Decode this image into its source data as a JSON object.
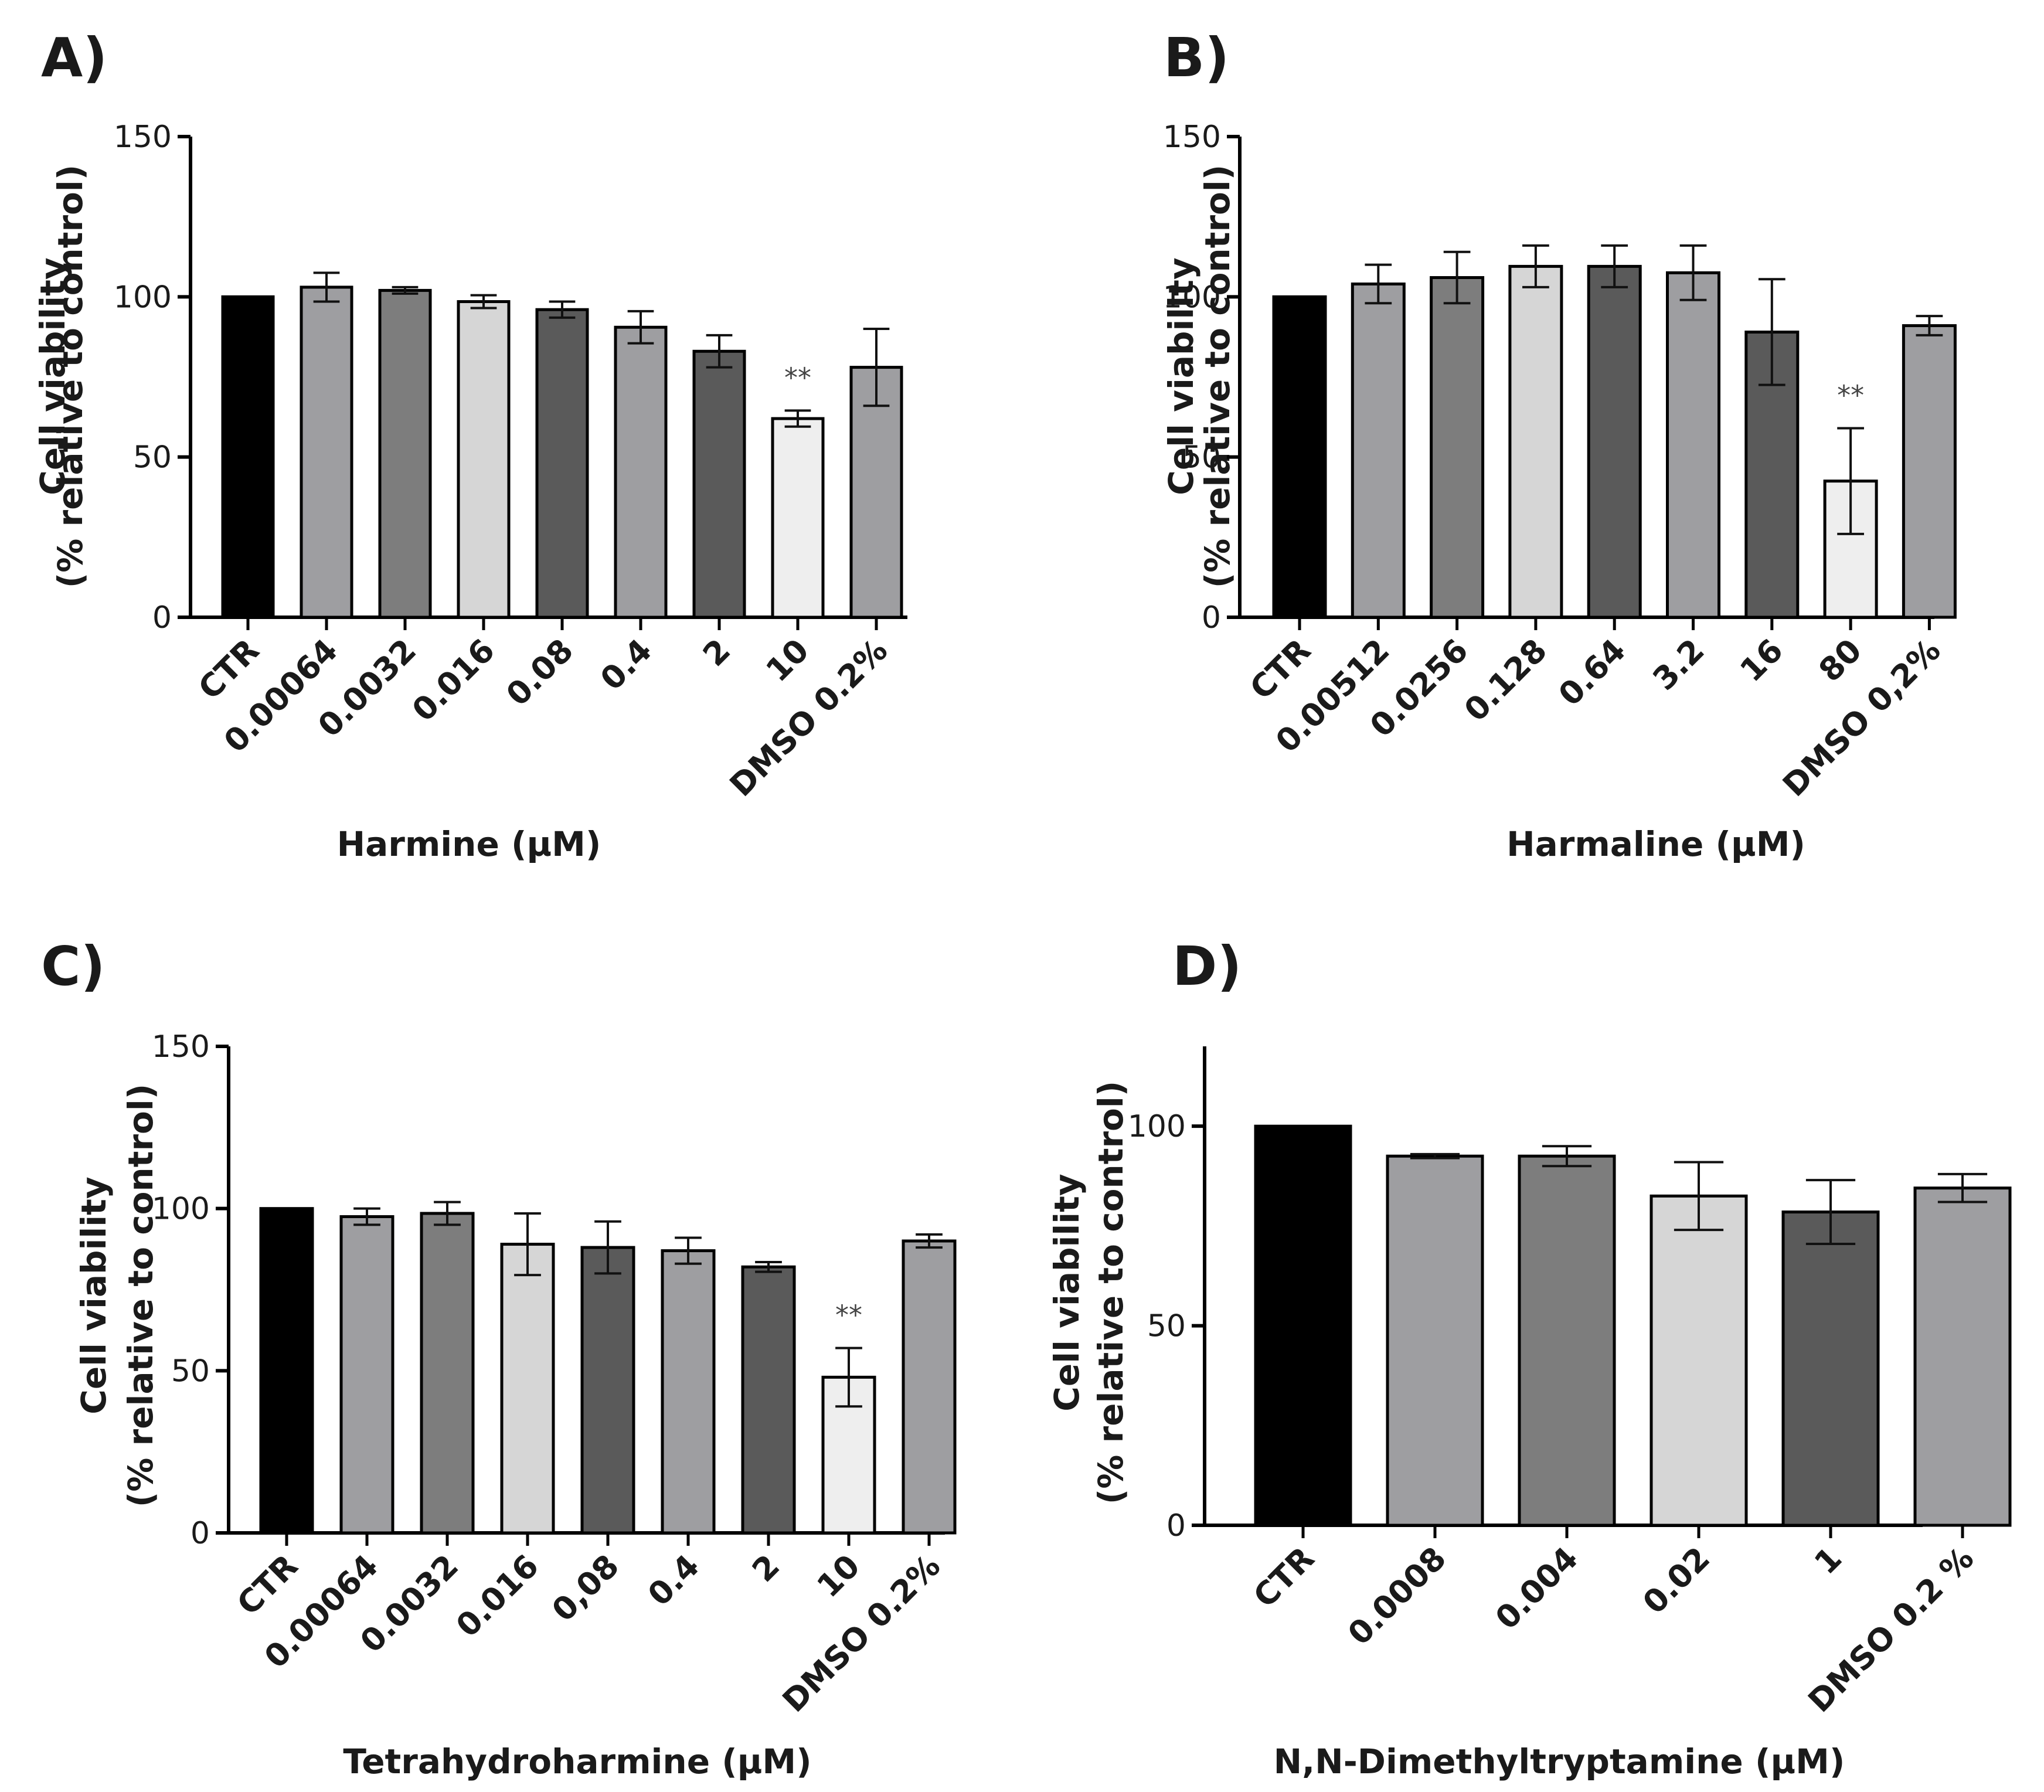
{
  "chart_data": [
    {
      "type": "bar",
      "panel": "A)",
      "categories": [
        "CTR",
        "0.00064",
        "0.0032",
        "0.016",
        "0.08",
        "0.4",
        "2",
        "10",
        "DMSO 0.2%"
      ],
      "values": [
        100,
        103,
        102,
        98.5,
        96,
        90.5,
        83,
        62,
        78
      ],
      "errors": [
        0,
        4.5,
        1,
        2,
        2.5,
        5,
        5,
        2.5,
        12
      ],
      "colors": [
        "#000000",
        "#9e9ea1",
        "#7d7d7d",
        "#d6d6d6",
        "#5a5a5a",
        "#9e9ea1",
        "#5a5a5a",
        "#eeeeee",
        "#9e9ea1"
      ],
      "significance": [
        {
          "index": 7,
          "label": "**"
        }
      ],
      "xlabel": "Harmine (µM)",
      "ylabel_line1": "Cell viability",
      "ylabel_line2": "(% relative to control)",
      "ylim": [
        0,
        150
      ],
      "yticks": [
        "0",
        "50",
        "100",
        "150"
      ],
      "grid": false
    },
    {
      "type": "bar",
      "panel": "B)",
      "categories": [
        "CTR",
        "0.00512",
        "0.0256",
        "0.128",
        "0.64",
        "3.2",
        "16",
        "80",
        "DMSO 0,2%"
      ],
      "values": [
        100,
        104,
        106,
        109.5,
        109.5,
        107.5,
        89,
        42.5,
        91
      ],
      "errors": [
        0,
        6,
        8,
        6.5,
        6.5,
        8.5,
        16.5,
        16.5,
        3
      ],
      "colors": [
        "#000000",
        "#9e9ea1",
        "#7d7d7d",
        "#d6d6d6",
        "#5a5a5a",
        "#9e9ea1",
        "#5a5a5a",
        "#eeeeee",
        "#9e9ea1"
      ],
      "significance": [
        {
          "index": 7,
          "label": "**"
        }
      ],
      "xlabel": "Harmaline (µM)",
      "ylabel_line1": "Cell viability",
      "ylabel_line2": "(% relative to control)",
      "ylim": [
        0,
        150
      ],
      "yticks": [
        "0",
        "50",
        "100",
        "150"
      ],
      "grid": false
    },
    {
      "type": "bar",
      "panel": "C)",
      "categories": [
        "CTR",
        "0.00064",
        "0.0032",
        "0.016",
        "0,08",
        "0.4",
        "2",
        "10",
        "DMSO 0.2%"
      ],
      "values": [
        100,
        97.5,
        98.5,
        89,
        88,
        87,
        82,
        48,
        90
      ],
      "errors": [
        0,
        2.5,
        3.5,
        9.5,
        8,
        4,
        1.5,
        9,
        2
      ],
      "colors": [
        "#000000",
        "#9e9ea1",
        "#7d7d7d",
        "#d6d6d6",
        "#5a5a5a",
        "#9e9ea1",
        "#5a5a5a",
        "#eeeeee",
        "#9e9ea1"
      ],
      "significance": [
        {
          "index": 7,
          "label": "**"
        }
      ],
      "xlabel": "Tetrahydroharmine (µM)",
      "ylabel_line1": "Cell viability",
      "ylabel_line2": "(% relative to control)",
      "ylim": [
        0,
        150
      ],
      "yticks": [
        "0",
        "50",
        "100",
        "150"
      ],
      "grid": false
    },
    {
      "type": "bar",
      "panel": "D)",
      "categories": [
        "CTR",
        "0.0008",
        "0.004",
        "0.02",
        "1",
        "DMSO 0.2 %"
      ],
      "values": [
        100,
        92.5,
        92.5,
        82.5,
        78.5,
        84.5
      ],
      "errors": [
        0,
        0.5,
        2.5,
        8.5,
        8,
        3.5
      ],
      "colors": [
        "#000000",
        "#9e9ea1",
        "#7d7d7d",
        "#d6d6d6",
        "#5a5a5a",
        "#9e9ea1"
      ],
      "significance": [],
      "xlabel": "N,N-Dimethyltryptamine (µM)",
      "ylabel_line1": "Cell viability",
      "ylabel_line2": "(% relative to control)",
      "ylim": [
        0,
        120
      ],
      "yticks": [
        "0",
        "50",
        "100"
      ],
      "grid": false
    }
  ]
}
